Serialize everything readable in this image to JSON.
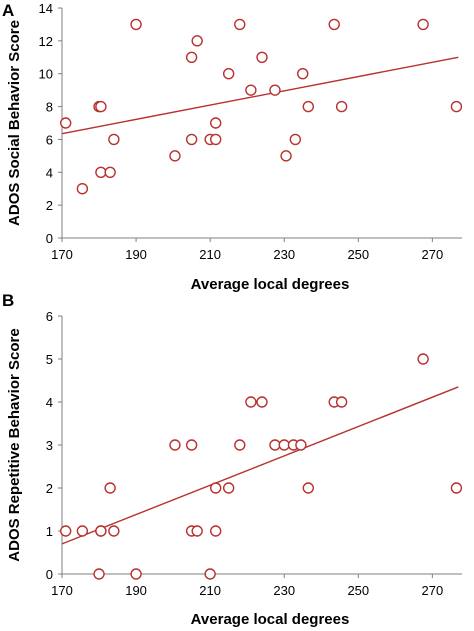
{
  "chart_data": [
    {
      "type": "scatter",
      "panel_label": "A",
      "xlabel": "Average local degrees",
      "ylabel": "ADOS Social Behavior Score",
      "xlim": [
        170,
        278
      ],
      "ylim": [
        0,
        14
      ],
      "xticks": [
        170,
        190,
        210,
        230,
        250,
        270
      ],
      "yticks": [
        0,
        2,
        4,
        6,
        8,
        10,
        12,
        14
      ],
      "colors": {
        "marker": "#b8312f",
        "axis": "#7f7f7f"
      },
      "points": [
        {
          "x": 171,
          "y": 7
        },
        {
          "x": 175.5,
          "y": 3
        },
        {
          "x": 180,
          "y": 8
        },
        {
          "x": 180.5,
          "y": 8
        },
        {
          "x": 180.5,
          "y": 4
        },
        {
          "x": 183,
          "y": 4
        },
        {
          "x": 184,
          "y": 6
        },
        {
          "x": 190,
          "y": 13
        },
        {
          "x": 200.5,
          "y": 5
        },
        {
          "x": 205,
          "y": 11
        },
        {
          "x": 205,
          "y": 6
        },
        {
          "x": 206.5,
          "y": 12
        },
        {
          "x": 210,
          "y": 6
        },
        {
          "x": 211.5,
          "y": 6
        },
        {
          "x": 211.5,
          "y": 7
        },
        {
          "x": 215,
          "y": 10
        },
        {
          "x": 218,
          "y": 13
        },
        {
          "x": 221,
          "y": 9
        },
        {
          "x": 224,
          "y": 11
        },
        {
          "x": 227.5,
          "y": 9
        },
        {
          "x": 230.5,
          "y": 5
        },
        {
          "x": 233,
          "y": 6
        },
        {
          "x": 235,
          "y": 10
        },
        {
          "x": 236.5,
          "y": 8
        },
        {
          "x": 243.5,
          "y": 13
        },
        {
          "x": 245.5,
          "y": 8
        },
        {
          "x": 267.5,
          "y": 13
        },
        {
          "x": 276.5,
          "y": 8
        }
      ],
      "trendline": [
        {
          "x": 170,
          "y": 6.35
        },
        {
          "x": 277,
          "y": 11.0
        }
      ]
    },
    {
      "type": "scatter",
      "panel_label": "B",
      "xlabel": "Average local degrees",
      "ylabel": "ADOS Repetitive Behavior Score",
      "xlim": [
        170,
        278
      ],
      "ylim": [
        0,
        6
      ],
      "xticks": [
        170,
        190,
        210,
        230,
        250,
        270
      ],
      "yticks": [
        0,
        1,
        2,
        3,
        4,
        5,
        6
      ],
      "colors": {
        "marker": "#b8312f",
        "axis": "#7f7f7f"
      },
      "points": [
        {
          "x": 171,
          "y": 1
        },
        {
          "x": 175.5,
          "y": 1
        },
        {
          "x": 180,
          "y": 0
        },
        {
          "x": 180.5,
          "y": 1
        },
        {
          "x": 180.5,
          "y": 1
        },
        {
          "x": 183,
          "y": 2
        },
        {
          "x": 184,
          "y": 1
        },
        {
          "x": 190,
          "y": 0
        },
        {
          "x": 200.5,
          "y": 3
        },
        {
          "x": 205,
          "y": 3
        },
        {
          "x": 205,
          "y": 1
        },
        {
          "x": 206.5,
          "y": 1
        },
        {
          "x": 210,
          "y": 0
        },
        {
          "x": 211.5,
          "y": 1
        },
        {
          "x": 211.5,
          "y": 2
        },
        {
          "x": 215,
          "y": 2
        },
        {
          "x": 218,
          "y": 3
        },
        {
          "x": 221,
          "y": 4
        },
        {
          "x": 224,
          "y": 4
        },
        {
          "x": 227.5,
          "y": 3
        },
        {
          "x": 230,
          "y": 3
        },
        {
          "x": 232.5,
          "y": 3
        },
        {
          "x": 234.5,
          "y": 3
        },
        {
          "x": 236.5,
          "y": 2
        },
        {
          "x": 243.5,
          "y": 4
        },
        {
          "x": 245.5,
          "y": 4
        },
        {
          "x": 267.5,
          "y": 5
        },
        {
          "x": 276.5,
          "y": 2
        }
      ],
      "trendline": [
        {
          "x": 170,
          "y": 0.7
        },
        {
          "x": 277,
          "y": 4.35
        }
      ]
    }
  ]
}
